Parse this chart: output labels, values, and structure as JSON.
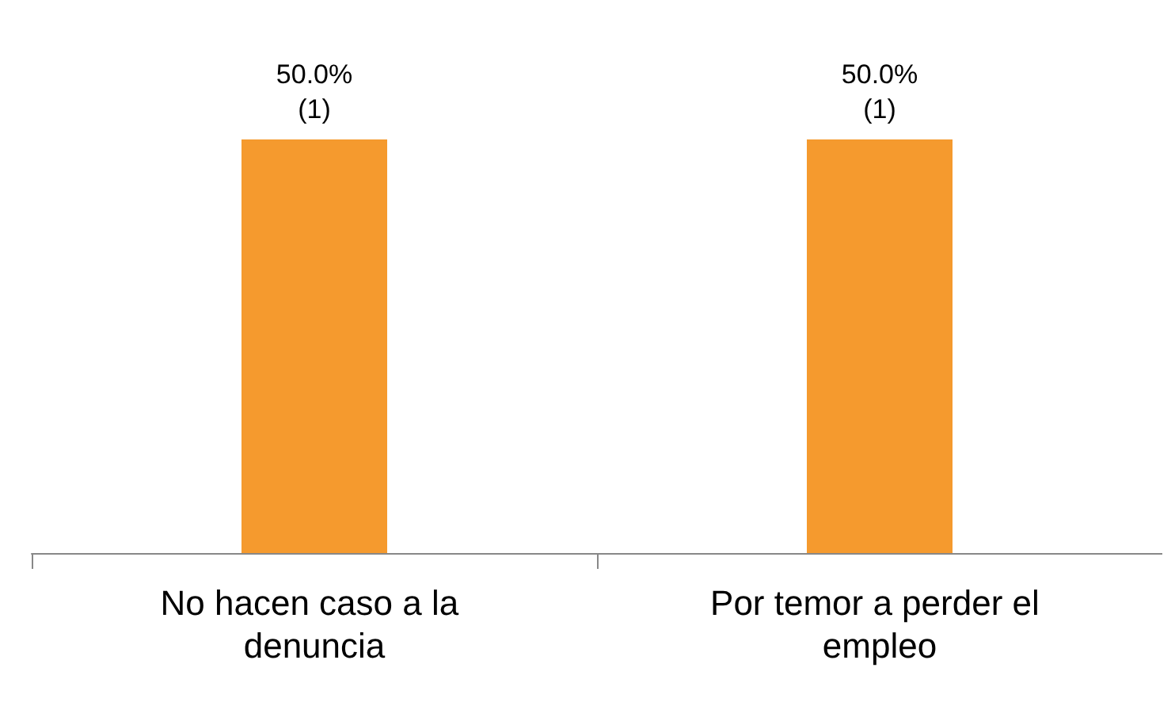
{
  "chart_data": {
    "type": "bar",
    "categories": [
      "No hacen caso a la denuncia",
      "Por temor a perder el empleo"
    ],
    "values": [
      50,
      50
    ],
    "value_labels": [
      "50.0%\n(1)",
      "50.0%\n(1)"
    ],
    "color": "#f59a2e"
  }
}
